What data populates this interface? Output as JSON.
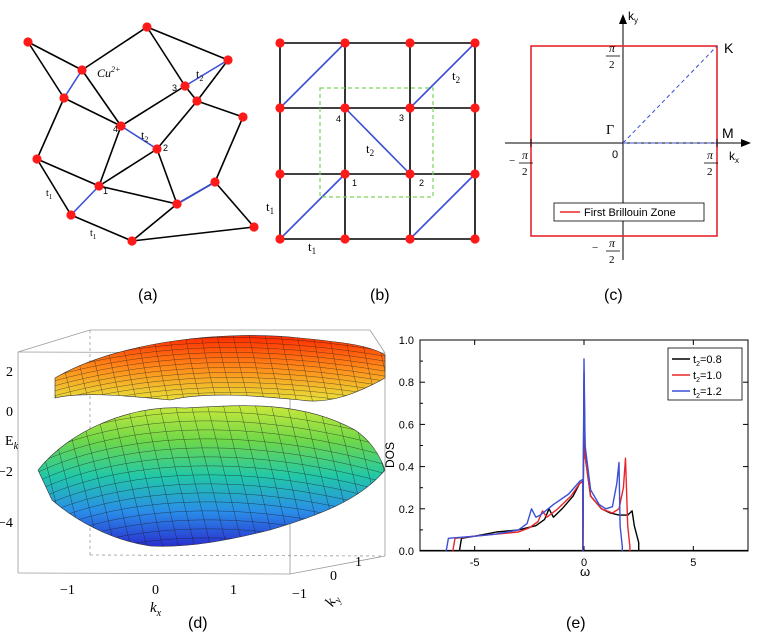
{
  "captions": {
    "a": "(a)",
    "b": "(b)",
    "c": "(c)",
    "d": "(d)",
    "e": "(e)"
  },
  "panel_a": {
    "ion_label": "Cu",
    "ion_charge": "2+",
    "site_labels": [
      "1",
      "2",
      "3",
      "4"
    ],
    "hop_t1": "t",
    "hop_t1_sub": "1",
    "hop_t2": "t",
    "hop_t2_sub": "2"
  },
  "panel_b": {
    "site_labels": [
      "1",
      "2",
      "3",
      "4"
    ],
    "hop_t1": "t",
    "hop_t1_sub": "1",
    "hop_t2": "t",
    "hop_t2_sub": "2"
  },
  "panel_c": {
    "ky_label": "k",
    "ky_sub": "y",
    "kx_label": "k",
    "kx_sub": "x",
    "pi": "π",
    "two": "2",
    "minus": "−",
    "zero": "0",
    "gamma": "Γ",
    "M": "M",
    "K": "K",
    "legend": "First Brillouin Zone",
    "colors": {
      "zone": "#e8262b",
      "path": "#3a4fd6"
    }
  },
  "panel_d": {
    "ylabel": "E",
    "ylabel_sub": "k",
    "xlabel": "k",
    "xlabel_sub": "x",
    "ky_label": "k",
    "ky_sub": "y",
    "z_ticks": [
      "2",
      "0",
      "−2",
      "−4"
    ],
    "kx_ticks": [
      "−1",
      "0",
      "1"
    ],
    "ky_ticks": [
      "−1",
      "0",
      "1"
    ]
  },
  "panel_e": {
    "ylabel": "DOS",
    "xlabel": "ω",
    "x_ticks": [
      "-5",
      "0",
      "5"
    ],
    "y_ticks": [
      "0.0",
      "0.2",
      "0.4",
      "0.6",
      "0.8",
      "1.0"
    ],
    "legend": [
      {
        "prefix": "t",
        "sub": "2",
        "suffix": "=0.8"
      },
      {
        "prefix": "t",
        "sub": "2",
        "suffix": "=1.0"
      },
      {
        "prefix": "t",
        "sub": "2",
        "suffix": "=1.2"
      }
    ]
  },
  "chart_data": {
    "type": "line",
    "xlabel": "ω",
    "ylabel": "DOS",
    "xlim": [
      -7.5,
      7.5
    ],
    "ylim": [
      0,
      1.0
    ],
    "grid": false,
    "legend_position": "top-right",
    "series": [
      {
        "name": "t2=0.8",
        "color": "#000000",
        "x": [
          -5.7,
          -5.6,
          -5.0,
          -4.0,
          -3.0,
          -2.2,
          -1.8,
          -1.6,
          -1.4,
          -1.0,
          -0.5,
          -0.2,
          -0.05,
          -0.05,
          0.0,
          0.05,
          0.3,
          0.8,
          1.2,
          1.6,
          2.0,
          2.2,
          2.3,
          2.5,
          2.5
        ],
        "y": [
          0.0,
          0.06,
          0.07,
          0.09,
          0.1,
          0.12,
          0.15,
          0.2,
          0.16,
          0.2,
          0.26,
          0.32,
          0.33,
          0.0,
          0.8,
          0.45,
          0.26,
          0.2,
          0.18,
          0.17,
          0.17,
          0.19,
          0.12,
          0.04,
          0.0
        ]
      },
      {
        "name": "t2=1.0",
        "color": "#e8262b",
        "x": [
          -6.0,
          -5.9,
          -5.0,
          -4.0,
          -3.0,
          -2.5,
          -2.1,
          -1.9,
          -1.7,
          -1.2,
          -0.6,
          -0.2,
          -0.05,
          -0.05,
          0.0,
          0.05,
          0.3,
          0.8,
          1.3,
          1.6,
          1.8,
          1.9,
          2.0,
          2.1,
          2.1
        ],
        "y": [
          0.0,
          0.06,
          0.07,
          0.08,
          0.09,
          0.11,
          0.14,
          0.19,
          0.16,
          0.2,
          0.26,
          0.32,
          0.33,
          0.0,
          0.85,
          0.45,
          0.26,
          0.2,
          0.18,
          0.2,
          0.3,
          0.44,
          0.12,
          0.02,
          0.0
        ]
      },
      {
        "name": "t2=1.2",
        "color": "#3a4fd6",
        "x": [
          -6.3,
          -6.2,
          -5.0,
          -4.0,
          -3.0,
          -2.6,
          -2.4,
          -2.2,
          -2.0,
          -1.4,
          -0.7,
          -0.2,
          -0.05,
          -0.05,
          0.0,
          0.05,
          0.3,
          0.7,
          1.0,
          1.3,
          1.5,
          1.6,
          1.65,
          1.75,
          1.75
        ],
        "y": [
          0.0,
          0.06,
          0.07,
          0.08,
          0.1,
          0.13,
          0.2,
          0.16,
          0.17,
          0.22,
          0.27,
          0.33,
          0.34,
          0.0,
          0.91,
          0.5,
          0.29,
          0.22,
          0.2,
          0.21,
          0.32,
          0.42,
          0.12,
          0.02,
          0.0
        ]
      }
    ]
  }
}
